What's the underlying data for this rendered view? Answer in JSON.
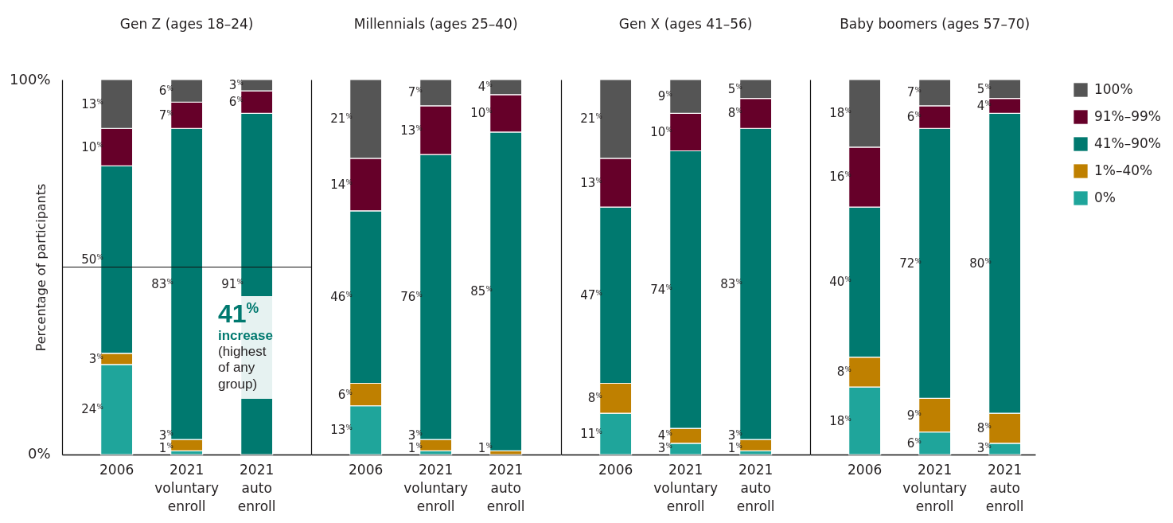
{
  "chart_data": [
    {
      "type": "bar",
      "title": "Gen Z (ages 18–24)",
      "ylabel": "Percentage of participants",
      "categories": [
        "2006",
        "2021 voluntary enroll",
        "2021 auto enroll"
      ],
      "stacked": true,
      "series": [
        {
          "color": "#1fa59b",
          "values": [
            24,
            1,
            null
          ],
          "value_labels": [
            "24$^{%}$",
            "1$^{%}$",
            null
          ]
        },
        {
          "color": "#bf8000",
          "values": [
            3,
            3,
            null
          ],
          "value_labels": [
            "3$^{%}$",
            "3$^{%}$",
            null
          ]
        },
        {
          "color": "#00796f",
          "values": [
            50,
            83,
            91
          ],
          "value_labels": [
            "50$^{%}$",
            "83$^{%}$",
            "91$^{%}$"
          ]
        },
        {
          "color": "#660029",
          "values": [
            10,
            7,
            6
          ],
          "value_labels": [
            "10$^{%}$",
            "7$^{%}$",
            "6$^{%}$"
          ]
        },
        {
          "color": "#555555",
          "values": [
            13,
            6,
            3
          ],
          "value_labels": [
            "13$^{%}$",
            "6$^{%}$",
            "3$^{%}$"
          ]
        }
      ],
      "ylim": [
        0,
        100
      ],
      "yticks": [
        {
          "value": 0,
          "label": "0%"
        },
        {
          "value": 100,
          "label": "100%"
        }
      ],
      "ref_lines": [
        {
          "axis": "y",
          "value": 50
        }
      ],
      "annotations": [
        "41$^{%}$ increase",
        "(highest of any group)"
      ]
    },
    {
      "type": "bar",
      "title": "Millennials (ages 25–40)",
      "categories": [
        "2006",
        "2021 voluntary enroll",
        "2021 auto enroll"
      ],
      "stacked": true,
      "series": [
        {
          "color": "#1fa59b",
          "values": [
            13,
            1,
            null
          ],
          "value_labels": [
            "13$^{%}$",
            "1$^{%}$",
            null
          ]
        },
        {
          "color": "#bf8000",
          "values": [
            6,
            3,
            1
          ],
          "value_labels": [
            "6$^{%}$",
            "3$^{%}$",
            "1$^{%}$"
          ]
        },
        {
          "color": "#00796f",
          "values": [
            46,
            76,
            85
          ],
          "value_labels": [
            "46$^{%}$",
            "76$^{%}$",
            "85$^{%}$"
          ]
        },
        {
          "color": "#660029",
          "values": [
            14,
            13,
            10
          ],
          "value_labels": [
            "14$^{%}$",
            "13$^{%}$",
            "10$^{%}$"
          ]
        },
        {
          "color": "#555555",
          "values": [
            21,
            7,
            4
          ],
          "value_labels": [
            "21$^{%}$",
            "7$^{%}$",
            "4$^{%}$"
          ]
        }
      ],
      "ylim": [
        0,
        100
      ],
      "tick_labels": "x"
    },
    {
      "type": "bar",
      "title": "Gen X (ages 41–56)",
      "categories": [
        "2006",
        "2021 voluntary enroll",
        "2021 auto enroll"
      ],
      "stacked": true,
      "series": [
        {
          "color": "#1fa59b",
          "values": [
            11,
            3,
            1
          ],
          "value_labels": [
            "11$^{%}$",
            "3$^{%}$",
            "1$^{%}$"
          ]
        },
        {
          "color": "#bf8000",
          "values": [
            8,
            4,
            3
          ],
          "value_labels": [
            "8$^{%}$",
            "4$^{%}$",
            "3$^{%}$"
          ]
        },
        {
          "color": "#00796f",
          "values": [
            47,
            74,
            83
          ],
          "value_labels": [
            "47$^{%}$",
            "74$^{%}$",
            "83$^{%}$"
          ]
        },
        {
          "color": "#660029",
          "values": [
            13,
            10,
            8
          ],
          "value_labels": [
            "13$^{%}$",
            "10$^{%}$",
            "8$^{%}$"
          ]
        },
        {
          "color": "#555555",
          "values": [
            21,
            9,
            5
          ],
          "value_labels": [
            "21$^{%}$",
            "9$^{%}$",
            "5$^{%}$"
          ]
        }
      ],
      "ylim": [
        0,
        100
      ],
      "tick_labels": "x"
    },
    {
      "type": "bar",
      "title": "Baby boomers (ages 57–70)",
      "categories": [
        "2006",
        "2021 voluntary enroll",
        "2021 auto enroll"
      ],
      "stacked": true,
      "legend": "right",
      "series": [
        {
          "name": "0%",
          "color": "#1fa59b",
          "values": [
            18,
            6,
            3
          ],
          "value_labels": [
            "18$^{%}$",
            "6$^{%}$",
            "3$^{%}$"
          ]
        },
        {
          "name": "1%–40%",
          "color": "#bf8000",
          "values": [
            8,
            9,
            8
          ],
          "value_labels": [
            "8$^{%}$",
            "9$^{%}$",
            "8$^{%}$"
          ]
        },
        {
          "name": "41%–90%",
          "color": "#00796f",
          "values": [
            40,
            72,
            80
          ],
          "value_labels": [
            "40$^{%}$",
            "72$^{%}$",
            "80$^{%}$"
          ]
        },
        {
          "name": "91%–99%",
          "color": "#660029",
          "values": [
            16,
            6,
            4
          ],
          "value_labels": [
            "16$^{%}$",
            "6$^{%}$",
            "4$^{%}$"
          ]
        },
        {
          "name": "100%",
          "color": "#555555",
          "values": [
            18,
            7,
            5
          ],
          "value_labels": [
            "18$^{%}$",
            "7$^{%}$",
            "5$^{%}$"
          ]
        }
      ],
      "ylim": [
        0,
        100
      ],
      "tick_labels": "x"
    }
  ]
}
